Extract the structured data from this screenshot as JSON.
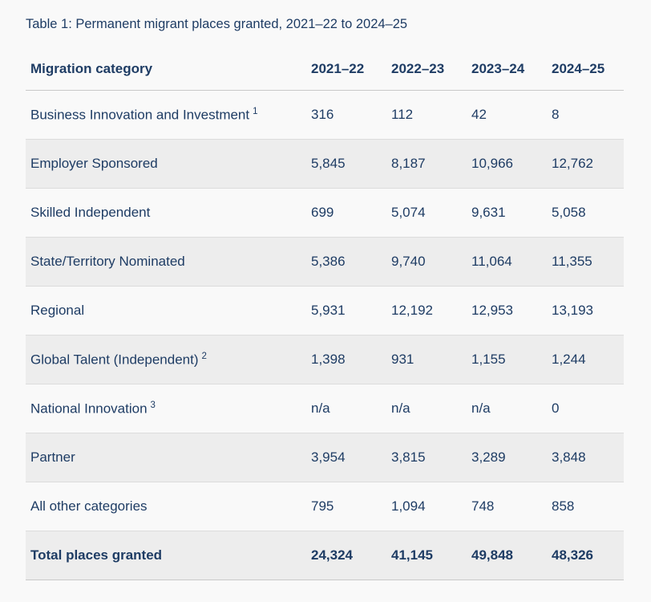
{
  "page": {
    "title": "Table 1: Permanent migrant places granted, 2021–22 to 2024–25",
    "colors": {
      "text_navy": "#1e3c64",
      "page_background": "#f9f9f9",
      "stripe_background": "#ededed",
      "row_border": "#dcdcdc",
      "header_border": "#c9c9c9"
    }
  },
  "table": {
    "columns": [
      "Migration category",
      "2021–22",
      "2022–23",
      "2023–24",
      "2024–25"
    ],
    "rows": [
      {
        "category": "Business Innovation and Investment",
        "footnote": "1",
        "values": [
          "316",
          "112",
          "42",
          "8"
        ]
      },
      {
        "category": "Employer Sponsored",
        "footnote": "",
        "values": [
          "5,845",
          "8,187",
          "10,966",
          "12,762"
        ]
      },
      {
        "category": "Skilled Independent",
        "footnote": "",
        "values": [
          "699",
          "5,074",
          "9,631",
          "5,058"
        ]
      },
      {
        "category": "State/Territory Nominated",
        "footnote": "",
        "values": [
          "5,386",
          "9,740",
          "11,064",
          "11,355"
        ]
      },
      {
        "category": "Regional",
        "footnote": "",
        "values": [
          "5,931",
          "12,192",
          "12,953",
          "13,193"
        ]
      },
      {
        "category": "Global Talent (Independent)",
        "footnote": "2",
        "values": [
          "1,398",
          "931",
          "1,155",
          "1,244"
        ]
      },
      {
        "category": "National Innovation",
        "footnote": "3",
        "values": [
          "n/a",
          "n/a",
          "n/a",
          "0"
        ]
      },
      {
        "category": "Partner",
        "footnote": "",
        "values": [
          "3,954",
          "3,815",
          "3,289",
          "3,848"
        ]
      },
      {
        "category": "All other categories",
        "footnote": "",
        "values": [
          "795",
          "1,094",
          "748",
          "858"
        ]
      },
      {
        "category": "Total places granted",
        "footnote": "",
        "values": [
          "24,324",
          "41,145",
          "49,848",
          "48,326"
        ]
      }
    ]
  }
}
